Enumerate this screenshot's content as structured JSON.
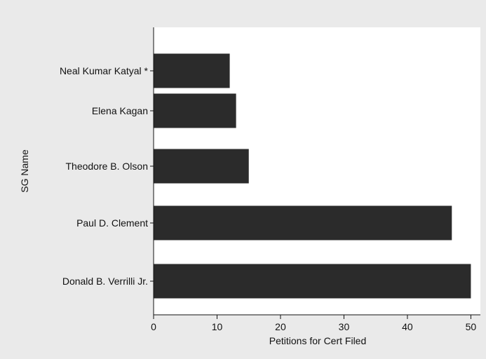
{
  "chart_data": {
    "type": "bar",
    "orientation": "horizontal",
    "categories": [
      "Neal Kumar Katyal *",
      "Elena Kagan",
      "Theodore B. Olson",
      "Paul D. Clement",
      "Donald B. Verrilli Jr."
    ],
    "values": [
      12,
      13,
      15,
      47,
      50
    ],
    "title": "",
    "xlabel": "Petitions for Cert Filed",
    "ylabel": "SG Name",
    "xlim": [
      0,
      51.5
    ],
    "xticks": [
      0,
      10,
      20,
      30,
      40,
      50
    ],
    "xtick_labels": [
      "0",
      "10",
      "20",
      "30",
      "40",
      "50"
    ],
    "grid": false,
    "legend": "none",
    "colors": {
      "bar": "#2b2b2b",
      "plot_background": "#ffffff",
      "outer_background": "#eaeaea",
      "text": "#111111"
    }
  }
}
